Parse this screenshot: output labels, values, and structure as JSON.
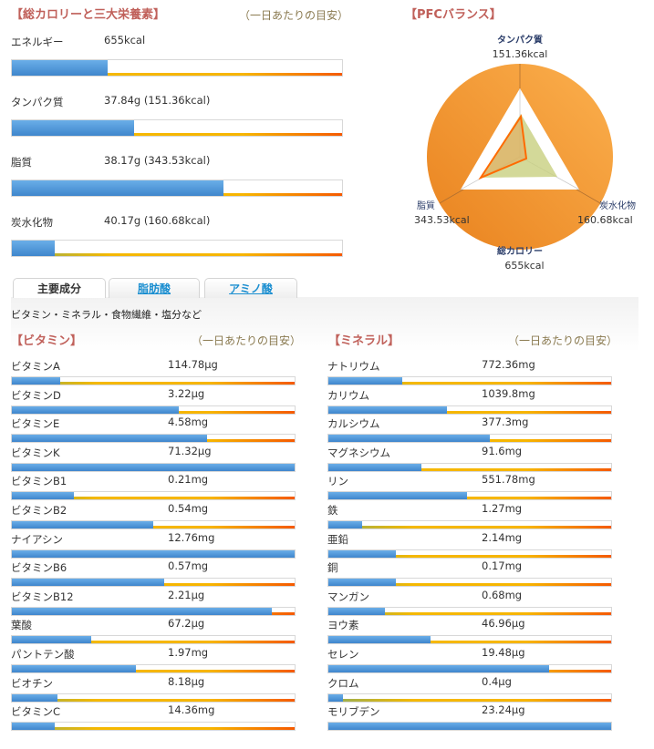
{
  "macro": {
    "title": "【総カロリーと三大栄養素】",
    "note": "（一日あたりの目安）",
    "items": [
      {
        "label": "エネルギー",
        "value": "655kcal",
        "percent": 29
      },
      {
        "label": "タンパク質",
        "value": "37.84g (151.36kcal)",
        "percent": 37
      },
      {
        "label": "脂質",
        "value": "38.17g (343.53kcal)",
        "percent": 64
      },
      {
        "label": "炭水化物",
        "value": "40.17g (160.68kcal)",
        "percent": 13
      }
    ]
  },
  "pfc": {
    "title": "【PFCバランス】",
    "protein": {
      "label": "タンパク質",
      "value": "151.36kcal"
    },
    "fat": {
      "label": "脂質",
      "value": "343.53kcal"
    },
    "carb": {
      "label": "炭水化物",
      "value": "160.68kcal"
    },
    "total": {
      "label": "総カロリー",
      "value": "655kcal"
    },
    "colors": {
      "circle": "#f0972e",
      "line": "#ff6a00",
      "standard": "#c8cf80"
    }
  },
  "tabs": [
    {
      "label": "主要成分",
      "active": true
    },
    {
      "label": "脂肪酸"
    },
    {
      "label": "アミノ酸"
    }
  ],
  "subtitle": "ビタミン・ミネラル・食物繊維・塩分など",
  "vitamins": {
    "title": "【ビタミン】",
    "note": "（一日あたりの目安）",
    "items": [
      {
        "label": "ビタミンA",
        "value": "114.78μg",
        "percent": 17
      },
      {
        "label": "ビタミンD",
        "value": "3.22μg",
        "percent": 59
      },
      {
        "label": "ビタミンE",
        "value": "4.58mg",
        "percent": 69
      },
      {
        "label": "ビタミンK",
        "value": "71.32μg",
        "percent": 100
      },
      {
        "label": "ビタミンB1",
        "value": "0.21mg",
        "percent": 22
      },
      {
        "label": "ビタミンB2",
        "value": "0.54mg",
        "percent": 50
      },
      {
        "label": "ナイアシン",
        "value": "12.76mg",
        "percent": 100
      },
      {
        "label": "ビタミンB6",
        "value": "0.57mg",
        "percent": 54
      },
      {
        "label": "ビタミンB12",
        "value": "2.21μg",
        "percent": 92
      },
      {
        "label": "葉酸",
        "value": "67.2μg",
        "percent": 28
      },
      {
        "label": "パントテン酸",
        "value": "1.97mg",
        "percent": 44
      },
      {
        "label": "ビオチン",
        "value": "8.18μg",
        "percent": 16
      },
      {
        "label": "ビタミンC",
        "value": "14.36mg",
        "percent": 15
      }
    ]
  },
  "minerals": {
    "title": "【ミネラル】",
    "note": "（一日あたりの目安）",
    "items": [
      {
        "label": "ナトリウム",
        "value": "772.36mg",
        "percent": 26
      },
      {
        "label": "カリウム",
        "value": "1039.8mg",
        "percent": 42
      },
      {
        "label": "カルシウム",
        "value": "377.3mg",
        "percent": 57
      },
      {
        "label": "マグネシウム",
        "value": "91.6mg",
        "percent": 33
      },
      {
        "label": "リン",
        "value": "551.78mg",
        "percent": 49
      },
      {
        "label": "鉄",
        "value": "1.27mg",
        "percent": 12
      },
      {
        "label": "亜鉛",
        "value": "2.14mg",
        "percent": 24
      },
      {
        "label": "銅",
        "value": "0.17mg",
        "percent": 24
      },
      {
        "label": "マンガン",
        "value": "0.68mg",
        "percent": 20
      },
      {
        "label": "ヨウ素",
        "value": "46.96μg",
        "percent": 36
      },
      {
        "label": "セレン",
        "value": "19.48μg",
        "percent": 78
      },
      {
        "label": "クロム",
        "value": "0.4μg",
        "percent": 5
      },
      {
        "label": "モリブデン",
        "value": "23.24μg",
        "percent": 100
      }
    ]
  }
}
